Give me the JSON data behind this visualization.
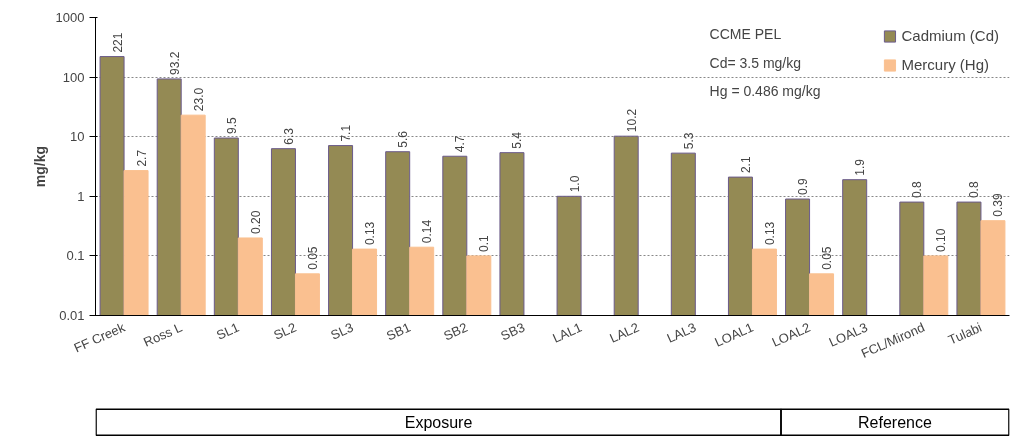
{
  "chart_data": {
    "type": "bar",
    "ylabel": "mg/kg",
    "categories": [
      "FF Creek",
      "Ross L",
      "SL1",
      "SL2",
      "SL3",
      "SB1",
      "SB2",
      "SB3",
      "LAL1",
      "LAL2",
      "LAL3",
      "LOAL1",
      "LOAL2",
      "LOAL3",
      "FCL/Mirond",
      "Tulabi"
    ],
    "series": [
      {
        "name": "Cadmium (Cd)",
        "color": "#948a54",
        "values": [
          221,
          93.2,
          9.5,
          6.3,
          7.1,
          5.6,
          4.7,
          5.4,
          1.0,
          10.2,
          5.3,
          2.1,
          0.9,
          1.9,
          0.8,
          0.8
        ],
        "value_labels": [
          "221",
          "93.2",
          "9.5",
          "6.3",
          "7.1",
          "5.6",
          "4.7",
          "5.4",
          "1.0",
          "10.2",
          "5.3",
          "2.1",
          "0.9",
          "1.9",
          "0.8",
          "0.8"
        ]
      },
      {
        "name": "Mercury (Hg)",
        "color": "#fac090",
        "values": [
          2.7,
          23.0,
          0.2,
          0.05,
          0.13,
          0.14,
          0.1,
          null,
          null,
          null,
          null,
          0.13,
          0.05,
          null,
          0.1,
          0.39
        ],
        "value_labels": [
          "2.7",
          "23.0",
          "0.20",
          "0.05",
          "0.13",
          "0.14",
          "0.1",
          null,
          null,
          null,
          null,
          "0.13",
          "0.05",
          null,
          "0.10",
          "0.39"
        ]
      }
    ],
    "log": true,
    "ylim": [
      0.01,
      1000
    ],
    "yticks": [
      0.01,
      0.1,
      1,
      10,
      100,
      1000
    ],
    "grid": "y",
    "legend": "top right",
    "annotations": [
      "CCME PEL",
      "Cd= 3.5 mg/kg",
      "Hg = 0.486 mg/kg",
      "Exposure",
      "Reference"
    ]
  }
}
